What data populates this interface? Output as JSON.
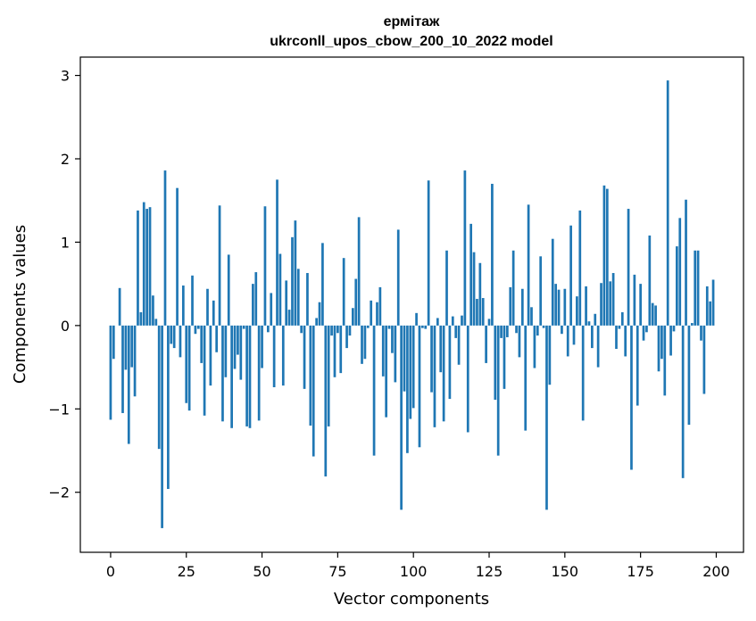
{
  "chart_data": {
    "type": "bar",
    "title": "ермітаж",
    "subtitle": "ukrconll_upos_cbow_200_10_2022 model",
    "xlabel": "Vector components",
    "ylabel": "Components values",
    "xlim": [
      -10,
      209
    ],
    "ylim": [
      -2.72,
      3.22
    ],
    "xticks": [
      0,
      25,
      50,
      75,
      100,
      125,
      150,
      175,
      200
    ],
    "xtick_labels": [
      "0",
      "25",
      "50",
      "75",
      "100",
      "125",
      "150",
      "175",
      "200"
    ],
    "yticks": [
      -2,
      -1,
      0,
      1,
      2,
      3
    ],
    "ytick_labels": [
      "−2",
      "−1",
      "0",
      "1",
      "2",
      "3"
    ],
    "grid": false,
    "bar_color": "#1f77b4",
    "x": [
      0,
      1,
      2,
      3,
      4,
      5,
      6,
      7,
      8,
      9,
      10,
      11,
      12,
      13,
      14,
      15,
      16,
      17,
      18,
      19,
      20,
      21,
      22,
      23,
      24,
      25,
      26,
      27,
      28,
      29,
      30,
      31,
      32,
      33,
      34,
      35,
      36,
      37,
      38,
      39,
      40,
      41,
      42,
      43,
      44,
      45,
      46,
      47,
      48,
      49,
      50,
      51,
      52,
      53,
      54,
      55,
      56,
      57,
      58,
      59,
      60,
      61,
      62,
      63,
      64,
      65,
      66,
      67,
      68,
      69,
      70,
      71,
      72,
      73,
      74,
      75,
      76,
      77,
      78,
      79,
      80,
      81,
      82,
      83,
      84,
      85,
      86,
      87,
      88,
      89,
      90,
      91,
      92,
      93,
      94,
      95,
      96,
      97,
      98,
      99,
      100,
      101,
      102,
      103,
      104,
      105,
      106,
      107,
      108,
      109,
      110,
      111,
      112,
      113,
      114,
      115,
      116,
      117,
      118,
      119,
      120,
      121,
      122,
      123,
      124,
      125,
      126,
      127,
      128,
      129,
      130,
      131,
      132,
      133,
      134,
      135,
      136,
      137,
      138,
      139,
      140,
      141,
      142,
      143,
      144,
      145,
      146,
      147,
      148,
      149,
      150,
      151,
      152,
      153,
      154,
      155,
      156,
      157,
      158,
      159,
      160,
      161,
      162,
      163,
      164,
      165,
      166,
      167,
      168,
      169,
      170,
      171,
      172,
      173,
      174,
      175,
      176,
      177,
      178,
      179,
      180,
      181,
      182,
      183,
      184,
      185,
      186,
      187,
      188,
      189,
      190,
      191,
      192,
      193,
      194,
      195,
      196,
      197,
      198,
      199
    ],
    "values": [
      -1.13,
      -0.4,
      0.0,
      0.45,
      -1.05,
      -0.53,
      -1.42,
      -0.5,
      -0.85,
      1.38,
      0.16,
      1.48,
      1.4,
      1.42,
      0.36,
      0.08,
      -1.48,
      -2.43,
      1.86,
      -1.96,
      -0.22,
      -0.27,
      1.65,
      -0.38,
      0.48,
      -0.93,
      -1.02,
      0.6,
      -0.1,
      -0.04,
      -0.45,
      -1.08,
      0.44,
      -0.72,
      0.3,
      -0.32,
      1.44,
      -1.15,
      -0.62,
      0.85,
      -1.23,
      -0.52,
      -0.35,
      -0.65,
      -0.04,
      -1.21,
      -1.23,
      0.5,
      0.64,
      -1.14,
      -0.51,
      1.43,
      -0.08,
      0.39,
      -0.74,
      1.75,
      0.86,
      -0.72,
      0.54,
      0.19,
      1.06,
      1.26,
      0.68,
      -0.09,
      -0.76,
      0.63,
      -1.2,
      -1.57,
      0.09,
      0.28,
      0.99,
      -1.81,
      -1.21,
      -0.12,
      -0.62,
      -0.09,
      -0.57,
      0.81,
      -0.27,
      -0.12,
      0.21,
      0.56,
      1.3,
      -0.46,
      -0.4,
      -0.03,
      0.3,
      -1.56,
      0.28,
      0.46,
      -0.61,
      -1.1,
      -0.04,
      -0.33,
      -0.68,
      1.15,
      -2.21,
      -0.79,
      -1.53,
      -1.12,
      -0.99,
      0.15,
      -1.46,
      -0.03,
      -0.04,
      1.74,
      -0.8,
      -1.22,
      0.09,
      -0.56,
      -1.15,
      0.9,
      -0.88,
      0.11,
      -0.15,
      -0.47,
      0.12,
      1.86,
      -1.28,
      1.22,
      0.88,
      0.32,
      0.75,
      0.33,
      -0.45,
      0.08,
      1.7,
      -0.89,
      -1.56,
      -0.15,
      -0.76,
      -0.14,
      0.46,
      0.9,
      -0.09,
      -0.38,
      0.44,
      -1.26,
      1.45,
      0.22,
      -0.51,
      -0.12,
      0.83,
      -0.03,
      -2.21,
      -0.71,
      1.04,
      0.5,
      0.43,
      -0.1,
      0.44,
      -0.37,
      1.2,
      -0.23,
      0.35,
      1.38,
      -1.14,
      0.47,
      0.05,
      -0.27,
      0.14,
      -0.5,
      0.51,
      1.68,
      1.64,
      0.53,
      0.63,
      -0.28,
      -0.04,
      0.16,
      -0.37,
      1.4,
      -1.73,
      0.61,
      -0.96,
      0.5,
      -0.18,
      -0.08,
      1.08,
      0.27,
      0.24,
      -0.55,
      -0.4,
      -0.84,
      2.94,
      -0.36,
      -0.07,
      0.95,
      1.29,
      -1.83,
      1.51,
      -1.19,
      0.03,
      0.9,
      0.9,
      -0.18,
      -0.82,
      0.47,
      0.29,
      0.55
    ]
  }
}
